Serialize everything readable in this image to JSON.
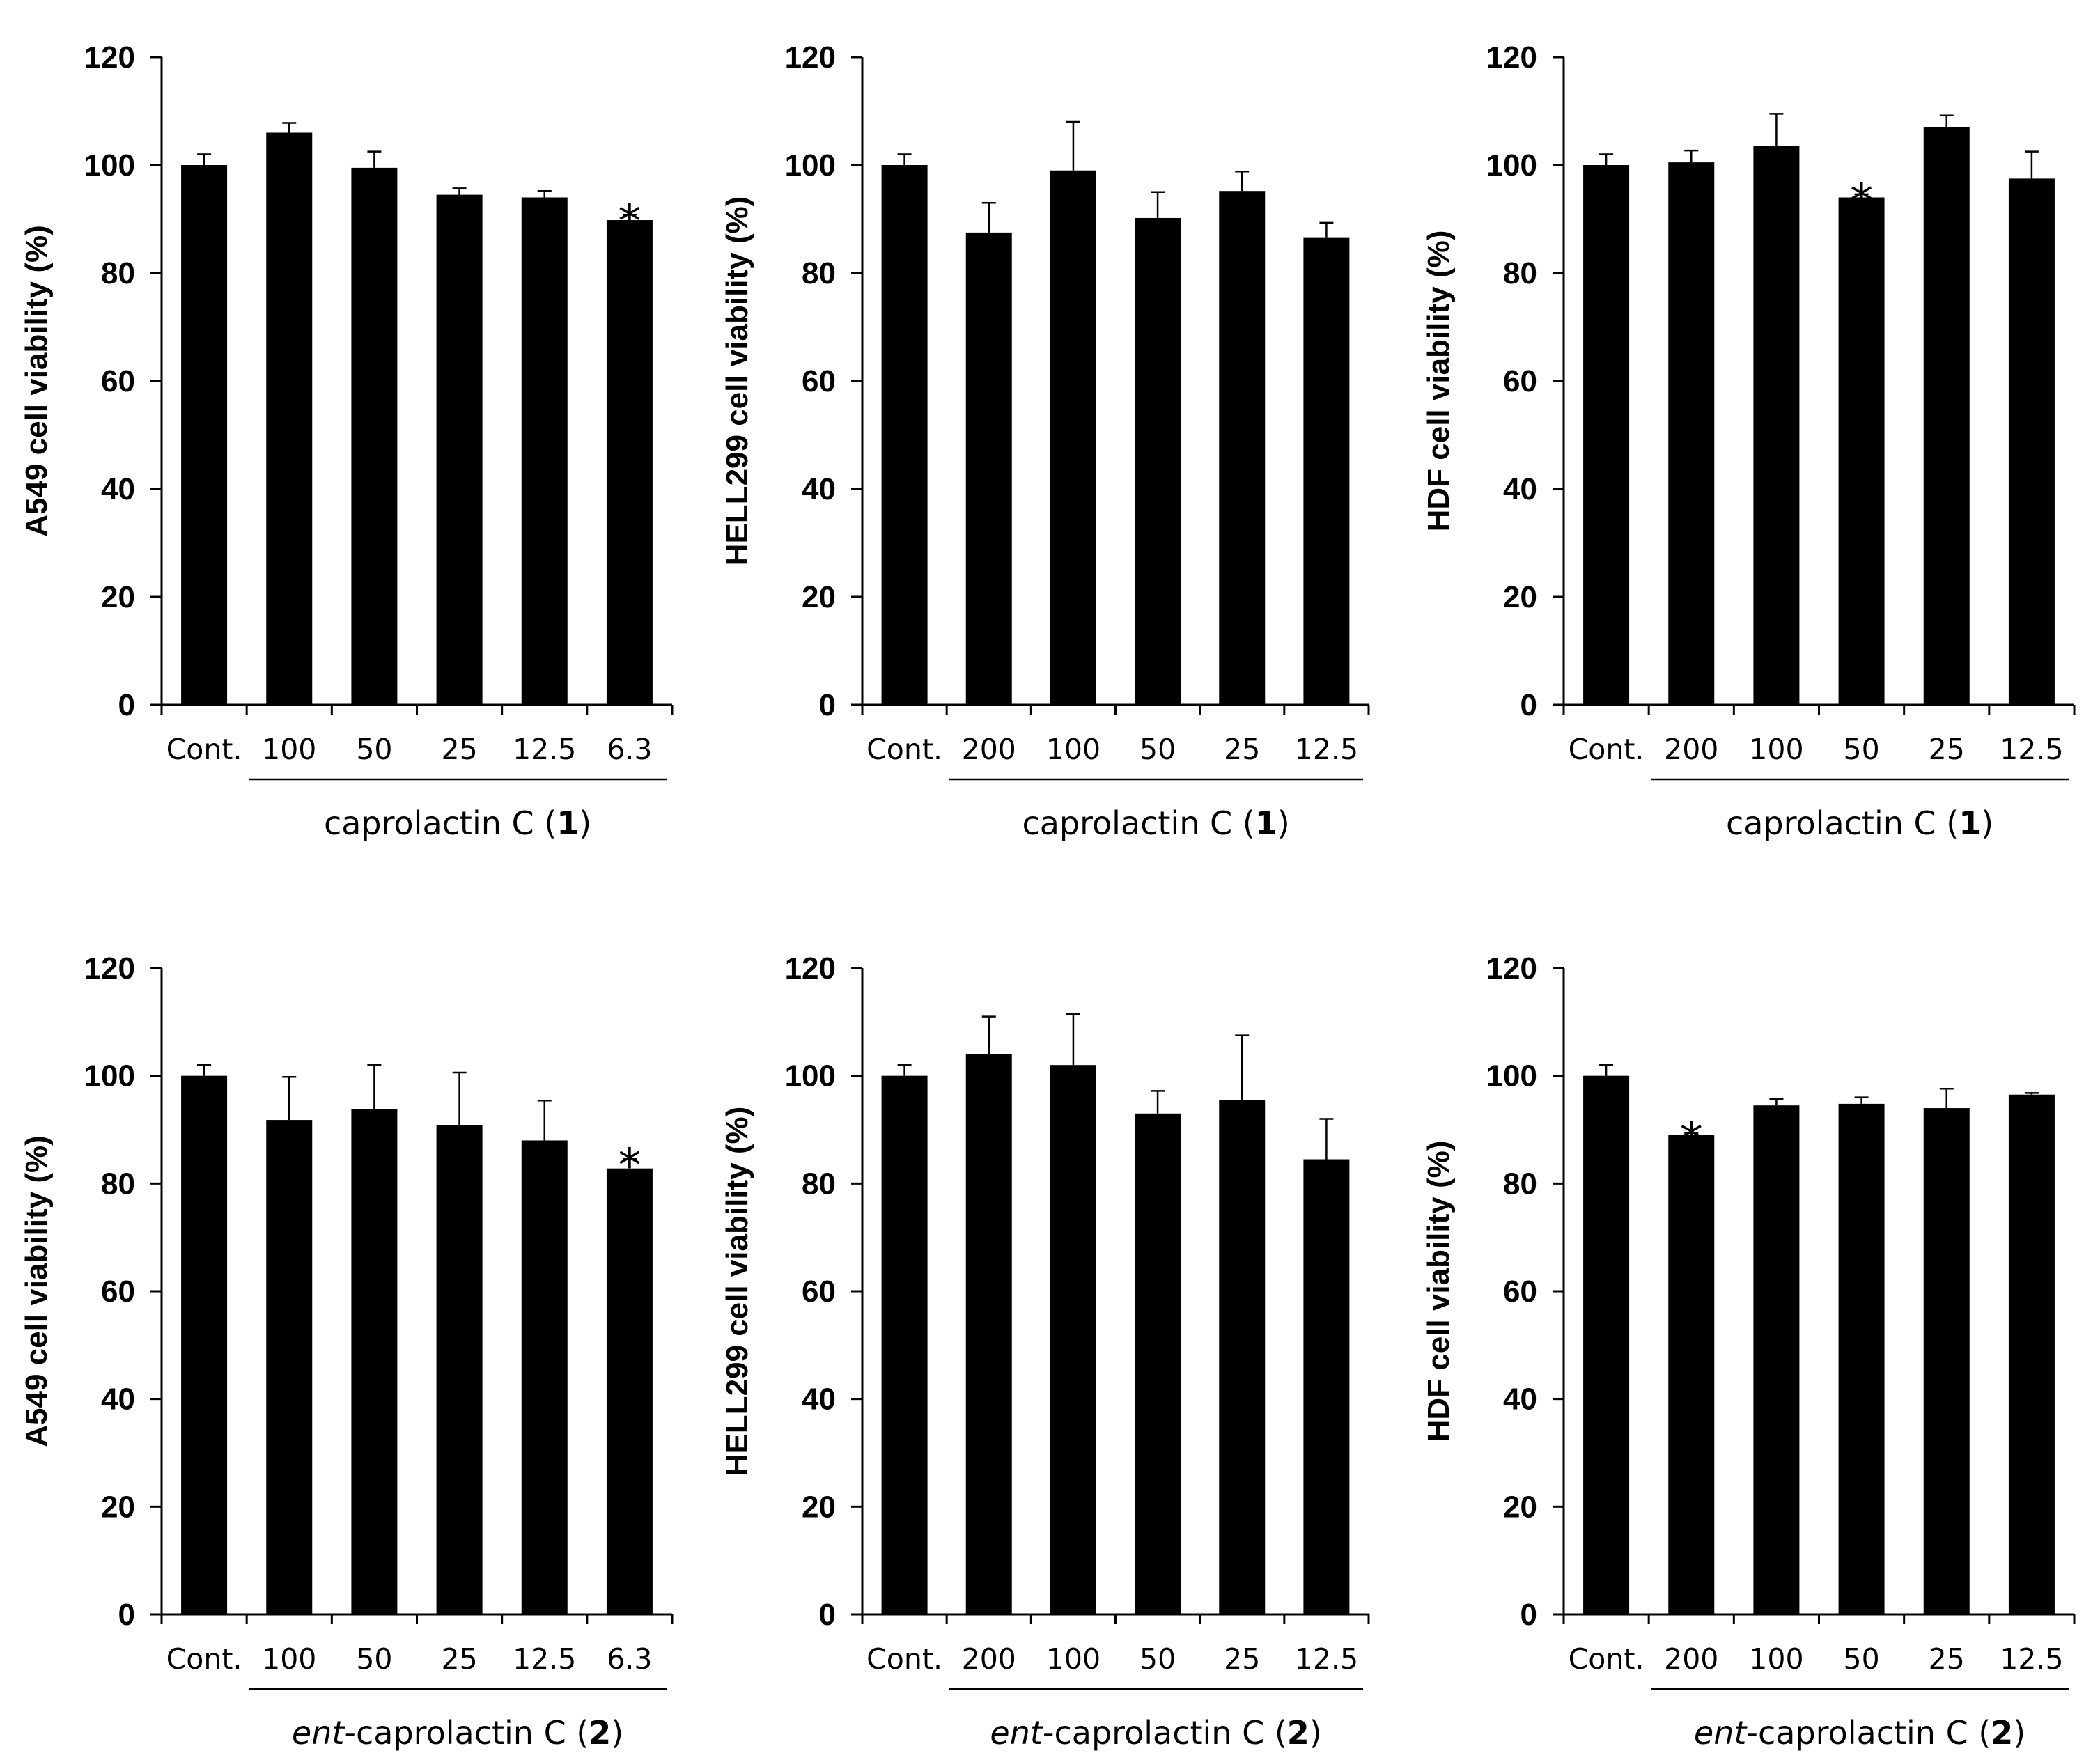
{
  "chart_data": [
    {
      "type": "bar",
      "ylabel": "A549 cell viability (%)",
      "ylim": [
        0,
        120
      ],
      "yticks": [
        0,
        20,
        40,
        60,
        80,
        100,
        120
      ],
      "categories": [
        "Cont.",
        "100",
        "50",
        "25",
        "12.5",
        "6.3"
      ],
      "values": [
        100,
        106,
        99.5,
        94.5,
        94,
        89.8
      ],
      "errors": [
        2,
        1.8,
        3,
        1.2,
        1.2,
        1
      ],
      "significant": [
        false,
        false,
        false,
        false,
        false,
        true
      ],
      "sig_marker": "*",
      "compound_label": {
        "prefix": "",
        "name": "caprolactin C",
        "open": " (",
        "number": "1",
        "close": ")"
      }
    },
    {
      "type": "bar",
      "ylabel": "HELL299 cell viability (%)",
      "ylim": [
        0,
        120
      ],
      "yticks": [
        0,
        20,
        40,
        60,
        80,
        100,
        120
      ],
      "categories": [
        "Cont.",
        "200",
        "100",
        "50",
        "25",
        "12.5"
      ],
      "values": [
        100,
        87.5,
        99,
        90.2,
        95.2,
        86.5
      ],
      "errors": [
        2,
        5.5,
        9,
        4.8,
        3.6,
        2.8
      ],
      "significant": [
        false,
        false,
        false,
        false,
        false,
        false
      ],
      "sig_marker": "*",
      "compound_label": {
        "prefix": "",
        "name": "caprolactin C",
        "open": " (",
        "number": "1",
        "close": ")"
      }
    },
    {
      "type": "bar",
      "ylabel": "HDF cell viability (%)",
      "ylim": [
        0,
        120
      ],
      "yticks": [
        0,
        20,
        40,
        60,
        80,
        100,
        120
      ],
      "categories": [
        "Cont.",
        "200",
        "100",
        "50",
        "25",
        "12.5"
      ],
      "values": [
        100,
        100.5,
        103.5,
        94,
        107,
        97.5
      ],
      "errors": [
        2,
        2.2,
        6,
        0.6,
        2.2,
        5
      ],
      "significant": [
        false,
        false,
        false,
        true,
        false,
        false
      ],
      "sig_marker": "*",
      "compound_label": {
        "prefix": "",
        "name": "caprolactin C",
        "open": " (",
        "number": "1",
        "close": ")"
      }
    },
    {
      "type": "bar",
      "ylabel": "A549 cell viability (%)",
      "ylim": [
        0,
        120
      ],
      "yticks": [
        0,
        20,
        40,
        60,
        80,
        100,
        120
      ],
      "categories": [
        "Cont.",
        "100",
        "50",
        "25",
        "12.5",
        "6.3"
      ],
      "values": [
        100,
        91.8,
        93.8,
        90.8,
        88,
        82.8
      ],
      "errors": [
        2,
        8,
        8.2,
        9.8,
        7.4,
        1.8
      ],
      "significant": [
        false,
        false,
        false,
        false,
        false,
        true
      ],
      "sig_marker": "*",
      "compound_label": {
        "prefix": "ent",
        "name": "-caprolactin C",
        "open": " (",
        "number": "2",
        "close": ")"
      }
    },
    {
      "type": "bar",
      "ylabel": "HELL299 cell viability (%)",
      "ylim": [
        0,
        120
      ],
      "yticks": [
        0,
        20,
        40,
        60,
        80,
        100,
        120
      ],
      "categories": [
        "Cont.",
        "200",
        "100",
        "50",
        "25",
        "12.5"
      ],
      "values": [
        100,
        104,
        102,
        93,
        95.5,
        84.5
      ],
      "errors": [
        2,
        7,
        9.5,
        4.2,
        12,
        7.5
      ],
      "significant": [
        false,
        false,
        false,
        false,
        false,
        false
      ],
      "sig_marker": "*",
      "compound_label": {
        "prefix": "ent",
        "name": "-caprolactin C",
        "open": " (",
        "number": "2",
        "close": ")"
      }
    },
    {
      "type": "bar",
      "ylabel": "HDF cell viability (%)",
      "ylim": [
        0,
        120
      ],
      "yticks": [
        0,
        20,
        40,
        60,
        80,
        100,
        120
      ],
      "categories": [
        "Cont.",
        "200",
        "100",
        "50",
        "25",
        "12.5"
      ],
      "values": [
        100,
        89,
        94.5,
        94.8,
        94,
        96.5
      ],
      "errors": [
        2,
        0.4,
        1.2,
        1.2,
        3.6,
        0.3
      ],
      "significant": [
        false,
        true,
        false,
        false,
        false,
        false
      ],
      "sig_marker": "*",
      "compound_label": {
        "prefix": "ent",
        "name": "-caprolactin C",
        "open": " (",
        "number": "2",
        "close": ")"
      }
    }
  ]
}
